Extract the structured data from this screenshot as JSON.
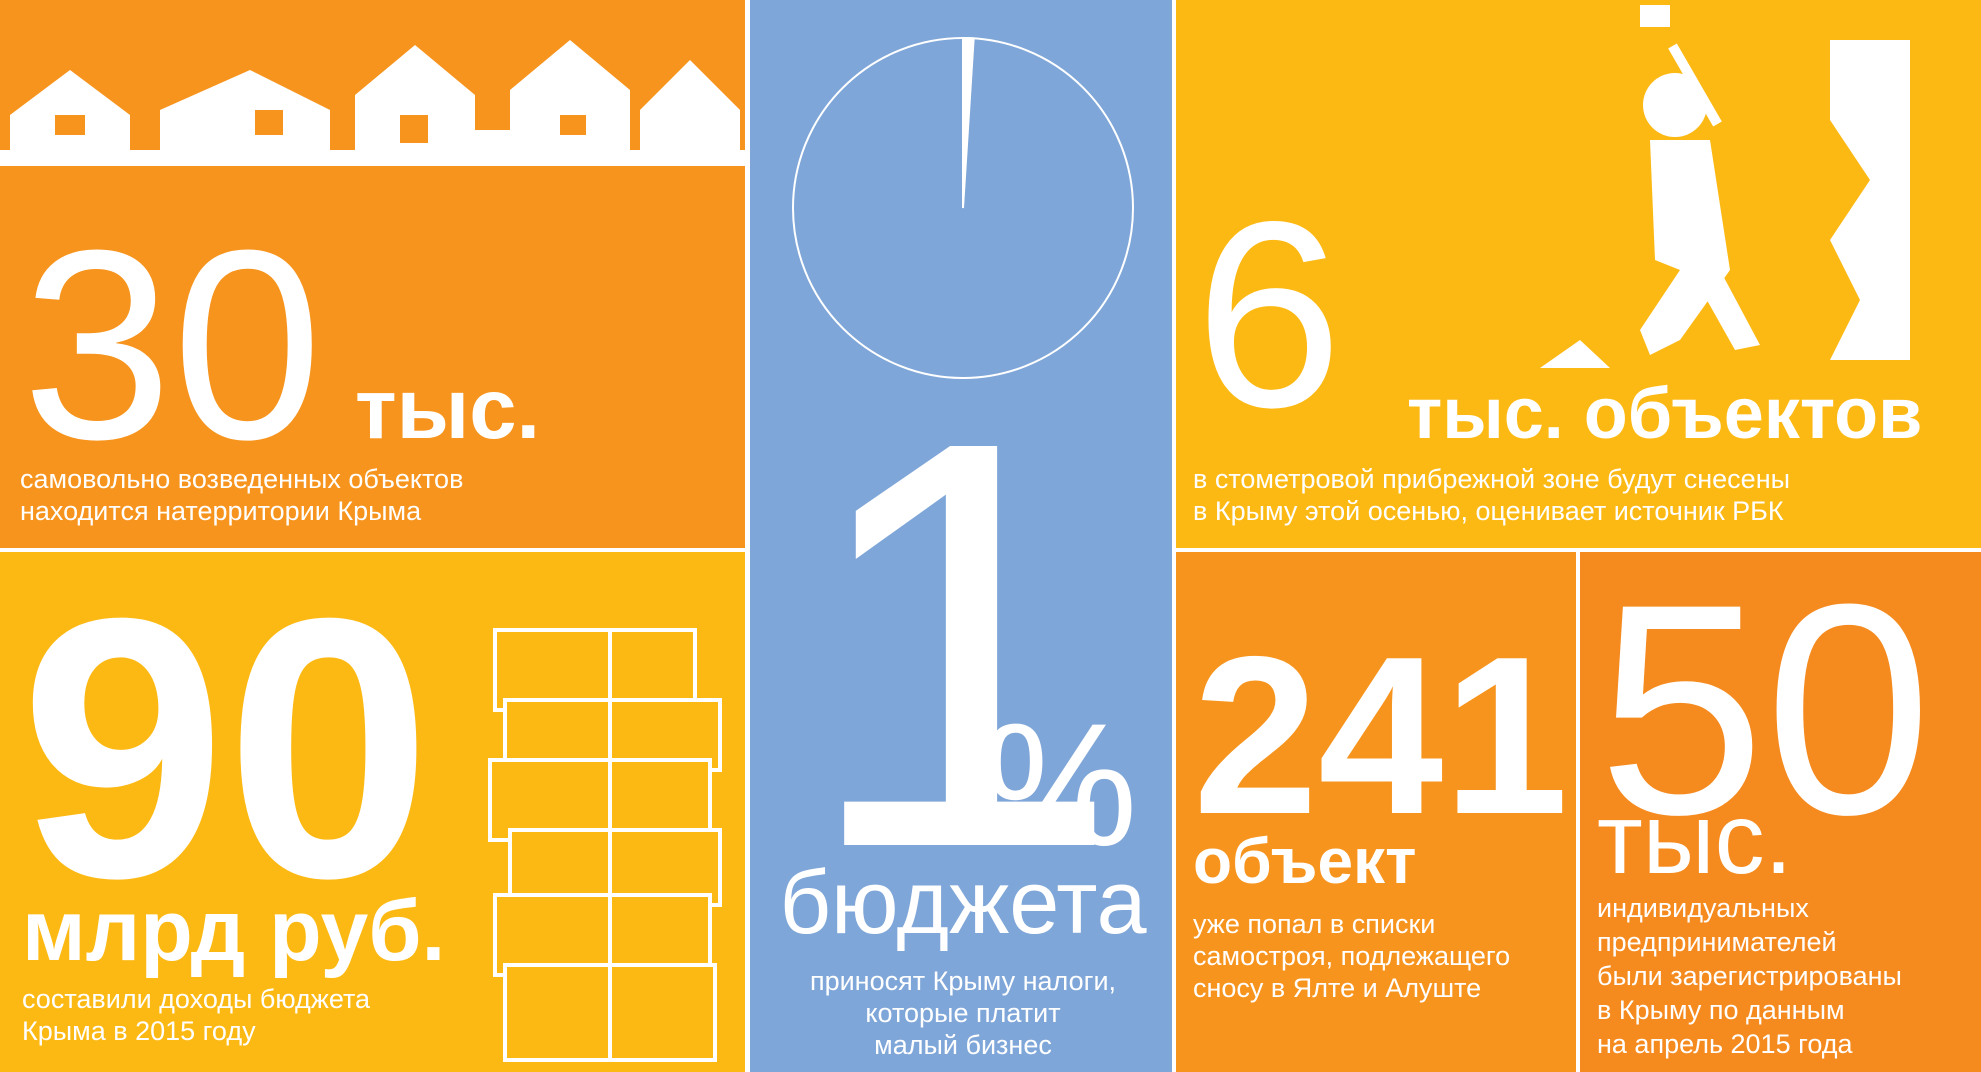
{
  "panels": {
    "illegal_buildings": {
      "number": "30",
      "unit": "тыс.",
      "caption": [
        "самовольно возведенных объектов",
        "находится натерритории Крыма"
      ]
    },
    "budget_income": {
      "number": "90",
      "unit": "млрд руб.",
      "caption": [
        "составили доходы бюджета",
        "Крыма в 2015 году"
      ]
    },
    "small_business_share": {
      "percent": 1,
      "percent_sign": "%",
      "unit": "бюджета",
      "caption": [
        "приносят Крыму налоги,",
        "которые платит",
        "малый бизнес"
      ]
    },
    "demolition": {
      "number": "6",
      "unit": "тыс. объектов",
      "caption": [
        "в стометровой прибрежной зоне будут снесены",
        "в Крыму этой осенью, оценивает источник РБК"
      ]
    },
    "demolition_list": {
      "number": "241",
      "unit": "объект",
      "caption": [
        "уже попал в списки",
        "самостроя, подлежащего",
        "сносу в Ялте и Алуште"
      ]
    },
    "entrepreneurs": {
      "number": "50",
      "unit": "тыс.",
      "caption": [
        "индивидуальных",
        "предпринимателей",
        "были зарегистрированы",
        "в Крыму по данным",
        "на апрель 2015 года"
      ]
    }
  }
}
